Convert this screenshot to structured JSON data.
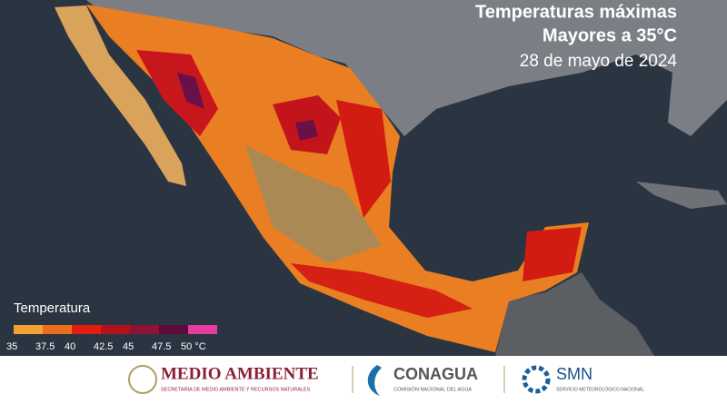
{
  "header": {
    "title_line1": "Temperaturas máximas",
    "title_line2": "Mayores a 35°C",
    "date": "28 de mayo de 2024"
  },
  "legend": {
    "title": "Temperatura",
    "colors": [
      "#f2a22e",
      "#ea6e1c",
      "#e21c10",
      "#b3121a",
      "#8e1138",
      "#5e0b3c",
      "#e23c9e"
    ],
    "ticks": [
      35,
      37.5,
      40,
      42.5,
      45,
      47.5,
      {
        "value": 50,
        "label": "50 °C"
      }
    ]
  },
  "footer": {
    "semarnat": "MEDIO AMBIENTE",
    "semarnat_sub": "SECRETARÍA DE MEDIO AMBIENTE Y RECURSOS NATURALES",
    "conagua": "CONAGUA",
    "conagua_sub": "COMISIÓN NACIONAL DEL AGUA",
    "smn": "SMN",
    "smn_sub": "SERVICIO METEOROLÓGICO NACIONAL"
  }
}
